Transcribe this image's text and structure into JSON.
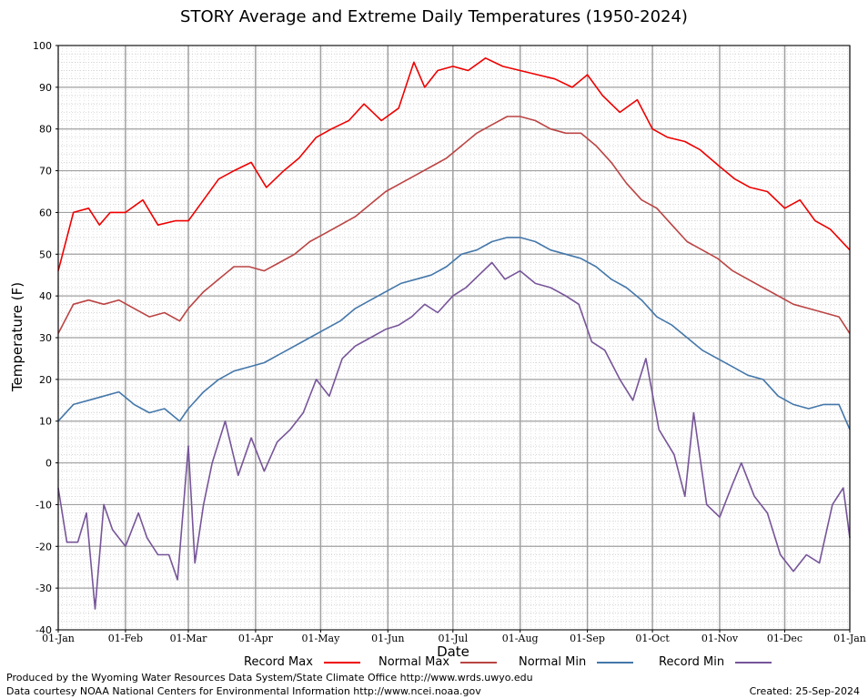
{
  "chart_data": {
    "type": "line",
    "title": "STORY Average and Extreme Daily Temperatures (1950-2024)",
    "xlabel": "Date",
    "ylabel": "Temperature (F)",
    "ylim": [
      -40,
      100
    ],
    "yticks": [
      -40,
      -30,
      -20,
      -10,
      0,
      10,
      20,
      30,
      40,
      50,
      60,
      70,
      80,
      90,
      100
    ],
    "x_day_range": [
      1,
      366
    ],
    "xticks": [
      {
        "label": "01-Jan",
        "day": 1
      },
      {
        "label": "01-Feb",
        "day": 32
      },
      {
        "label": "01-Mar",
        "day": 61
      },
      {
        "label": "01-Apr",
        "day": 92
      },
      {
        "label": "01-May",
        "day": 122
      },
      {
        "label": "01-Jun",
        "day": 153
      },
      {
        "label": "01-Jul",
        "day": 183
      },
      {
        "label": "01-Aug",
        "day": 214
      },
      {
        "label": "01-Sep",
        "day": 245
      },
      {
        "label": "01-Oct",
        "day": 275
      },
      {
        "label": "01-Nov",
        "day": 306
      },
      {
        "label": "01-Dec",
        "day": 336
      },
      {
        "label": "01-Jan",
        "day": 366
      }
    ],
    "grid": true,
    "legend_position": "bottom",
    "series": [
      {
        "name": "Record Max",
        "color": "#ee0000",
        "x": [
          1,
          8,
          15,
          20,
          25,
          32,
          40,
          47,
          55,
          61,
          68,
          75,
          82,
          90,
          97,
          105,
          112,
          120,
          127,
          135,
          142,
          150,
          158,
          165,
          170,
          176,
          183,
          190,
          198,
          206,
          214,
          222,
          230,
          238,
          245,
          252,
          260,
          268,
          275,
          282,
          290,
          297,
          306,
          313,
          320,
          328,
          336,
          343,
          350,
          357,
          366
        ],
        "values": [
          46,
          60,
          61,
          57,
          60,
          60,
          63,
          57,
          58,
          58,
          63,
          68,
          70,
          72,
          66,
          70,
          73,
          78,
          80,
          82,
          86,
          82,
          85,
          96,
          90,
          94,
          95,
          94,
          97,
          95,
          94,
          93,
          92,
          90,
          93,
          88,
          84,
          87,
          80,
          78,
          77,
          75,
          71,
          68,
          66,
          65,
          61,
          63,
          58,
          56,
          51
        ]
      },
      {
        "name": "Normal Max",
        "color": "#bb4444",
        "x": [
          1,
          8,
          15,
          22,
          29,
          36,
          43,
          50,
          57,
          61,
          68,
          75,
          82,
          89,
          96,
          103,
          110,
          117,
          124,
          131,
          138,
          145,
          152,
          159,
          166,
          173,
          180,
          187,
          194,
          201,
          208,
          214,
          221,
          228,
          235,
          242,
          249,
          256,
          263,
          270,
          277,
          284,
          291,
          298,
          305,
          312,
          319,
          326,
          333,
          340,
          347,
          354,
          361,
          366
        ],
        "values": [
          31,
          38,
          39,
          38,
          39,
          37,
          35,
          36,
          34,
          37,
          41,
          44,
          47,
          47,
          46,
          48,
          50,
          53,
          55,
          57,
          59,
          62,
          65,
          67,
          69,
          71,
          73,
          76,
          79,
          81,
          83,
          83,
          82,
          80,
          79,
          79,
          76,
          72,
          67,
          63,
          61,
          57,
          53,
          51,
          49,
          46,
          44,
          42,
          40,
          38,
          37,
          36,
          35,
          31
        ]
      },
      {
        "name": "Normal Min",
        "color": "#4477aa",
        "x": [
          1,
          8,
          15,
          22,
          29,
          36,
          43,
          50,
          57,
          61,
          68,
          75,
          82,
          89,
          96,
          103,
          110,
          117,
          124,
          131,
          138,
          145,
          152,
          159,
          166,
          173,
          180,
          187,
          194,
          201,
          208,
          214,
          221,
          228,
          235,
          242,
          249,
          256,
          263,
          270,
          277,
          284,
          291,
          298,
          305,
          312,
          319,
          326,
          333,
          340,
          347,
          354,
          361,
          366
        ],
        "values": [
          10,
          14,
          15,
          16,
          17,
          14,
          12,
          13,
          10,
          13,
          17,
          20,
          22,
          23,
          24,
          26,
          28,
          30,
          32,
          34,
          37,
          39,
          41,
          43,
          44,
          45,
          47,
          50,
          51,
          53,
          54,
          54,
          53,
          51,
          50,
          49,
          47,
          44,
          42,
          39,
          35,
          33,
          30,
          27,
          25,
          23,
          21,
          20,
          16,
          14,
          13,
          14,
          14,
          8
        ]
      },
      {
        "name": "Record Min",
        "color": "#775599",
        "x": [
          1,
          5,
          10,
          14,
          18,
          22,
          26,
          32,
          38,
          42,
          47,
          52,
          56,
          61,
          64,
          68,
          72,
          78,
          84,
          90,
          96,
          102,
          108,
          114,
          120,
          126,
          132,
          138,
          145,
          152,
          158,
          164,
          170,
          176,
          183,
          189,
          195,
          201,
          207,
          214,
          221,
          228,
          235,
          241,
          247,
          253,
          260,
          266,
          272,
          278,
          285,
          290,
          294,
          300,
          306,
          312,
          316,
          322,
          328,
          334,
          340,
          346,
          352,
          358,
          363,
          366
        ],
        "values": [
          -6,
          -19,
          -19,
          -12,
          -35,
          -10,
          -16,
          -20,
          -12,
          -18,
          -22,
          -22,
          -28,
          4,
          -24,
          -10,
          0,
          10,
          -3,
          6,
          -2,
          5,
          8,
          12,
          20,
          16,
          25,
          28,
          30,
          32,
          33,
          35,
          38,
          36,
          40,
          42,
          45,
          48,
          44,
          46,
          43,
          42,
          40,
          38,
          29,
          27,
          20,
          15,
          25,
          8,
          2,
          -8,
          12,
          -10,
          -13,
          -5,
          0,
          -8,
          -12,
          -22,
          -26,
          -22,
          -24,
          -10,
          -6,
          -18
        ]
      }
    ]
  },
  "footer": {
    "produced_by": "Produced by the Wyoming Water Resources Data System/State Climate Office http://www.wrds.uwyo.edu",
    "data_courtesy": "Data courtesy NOAA National Centers for Environmental Information http://www.ncei.noaa.gov",
    "created": "Created:  25-Sep-2024"
  }
}
